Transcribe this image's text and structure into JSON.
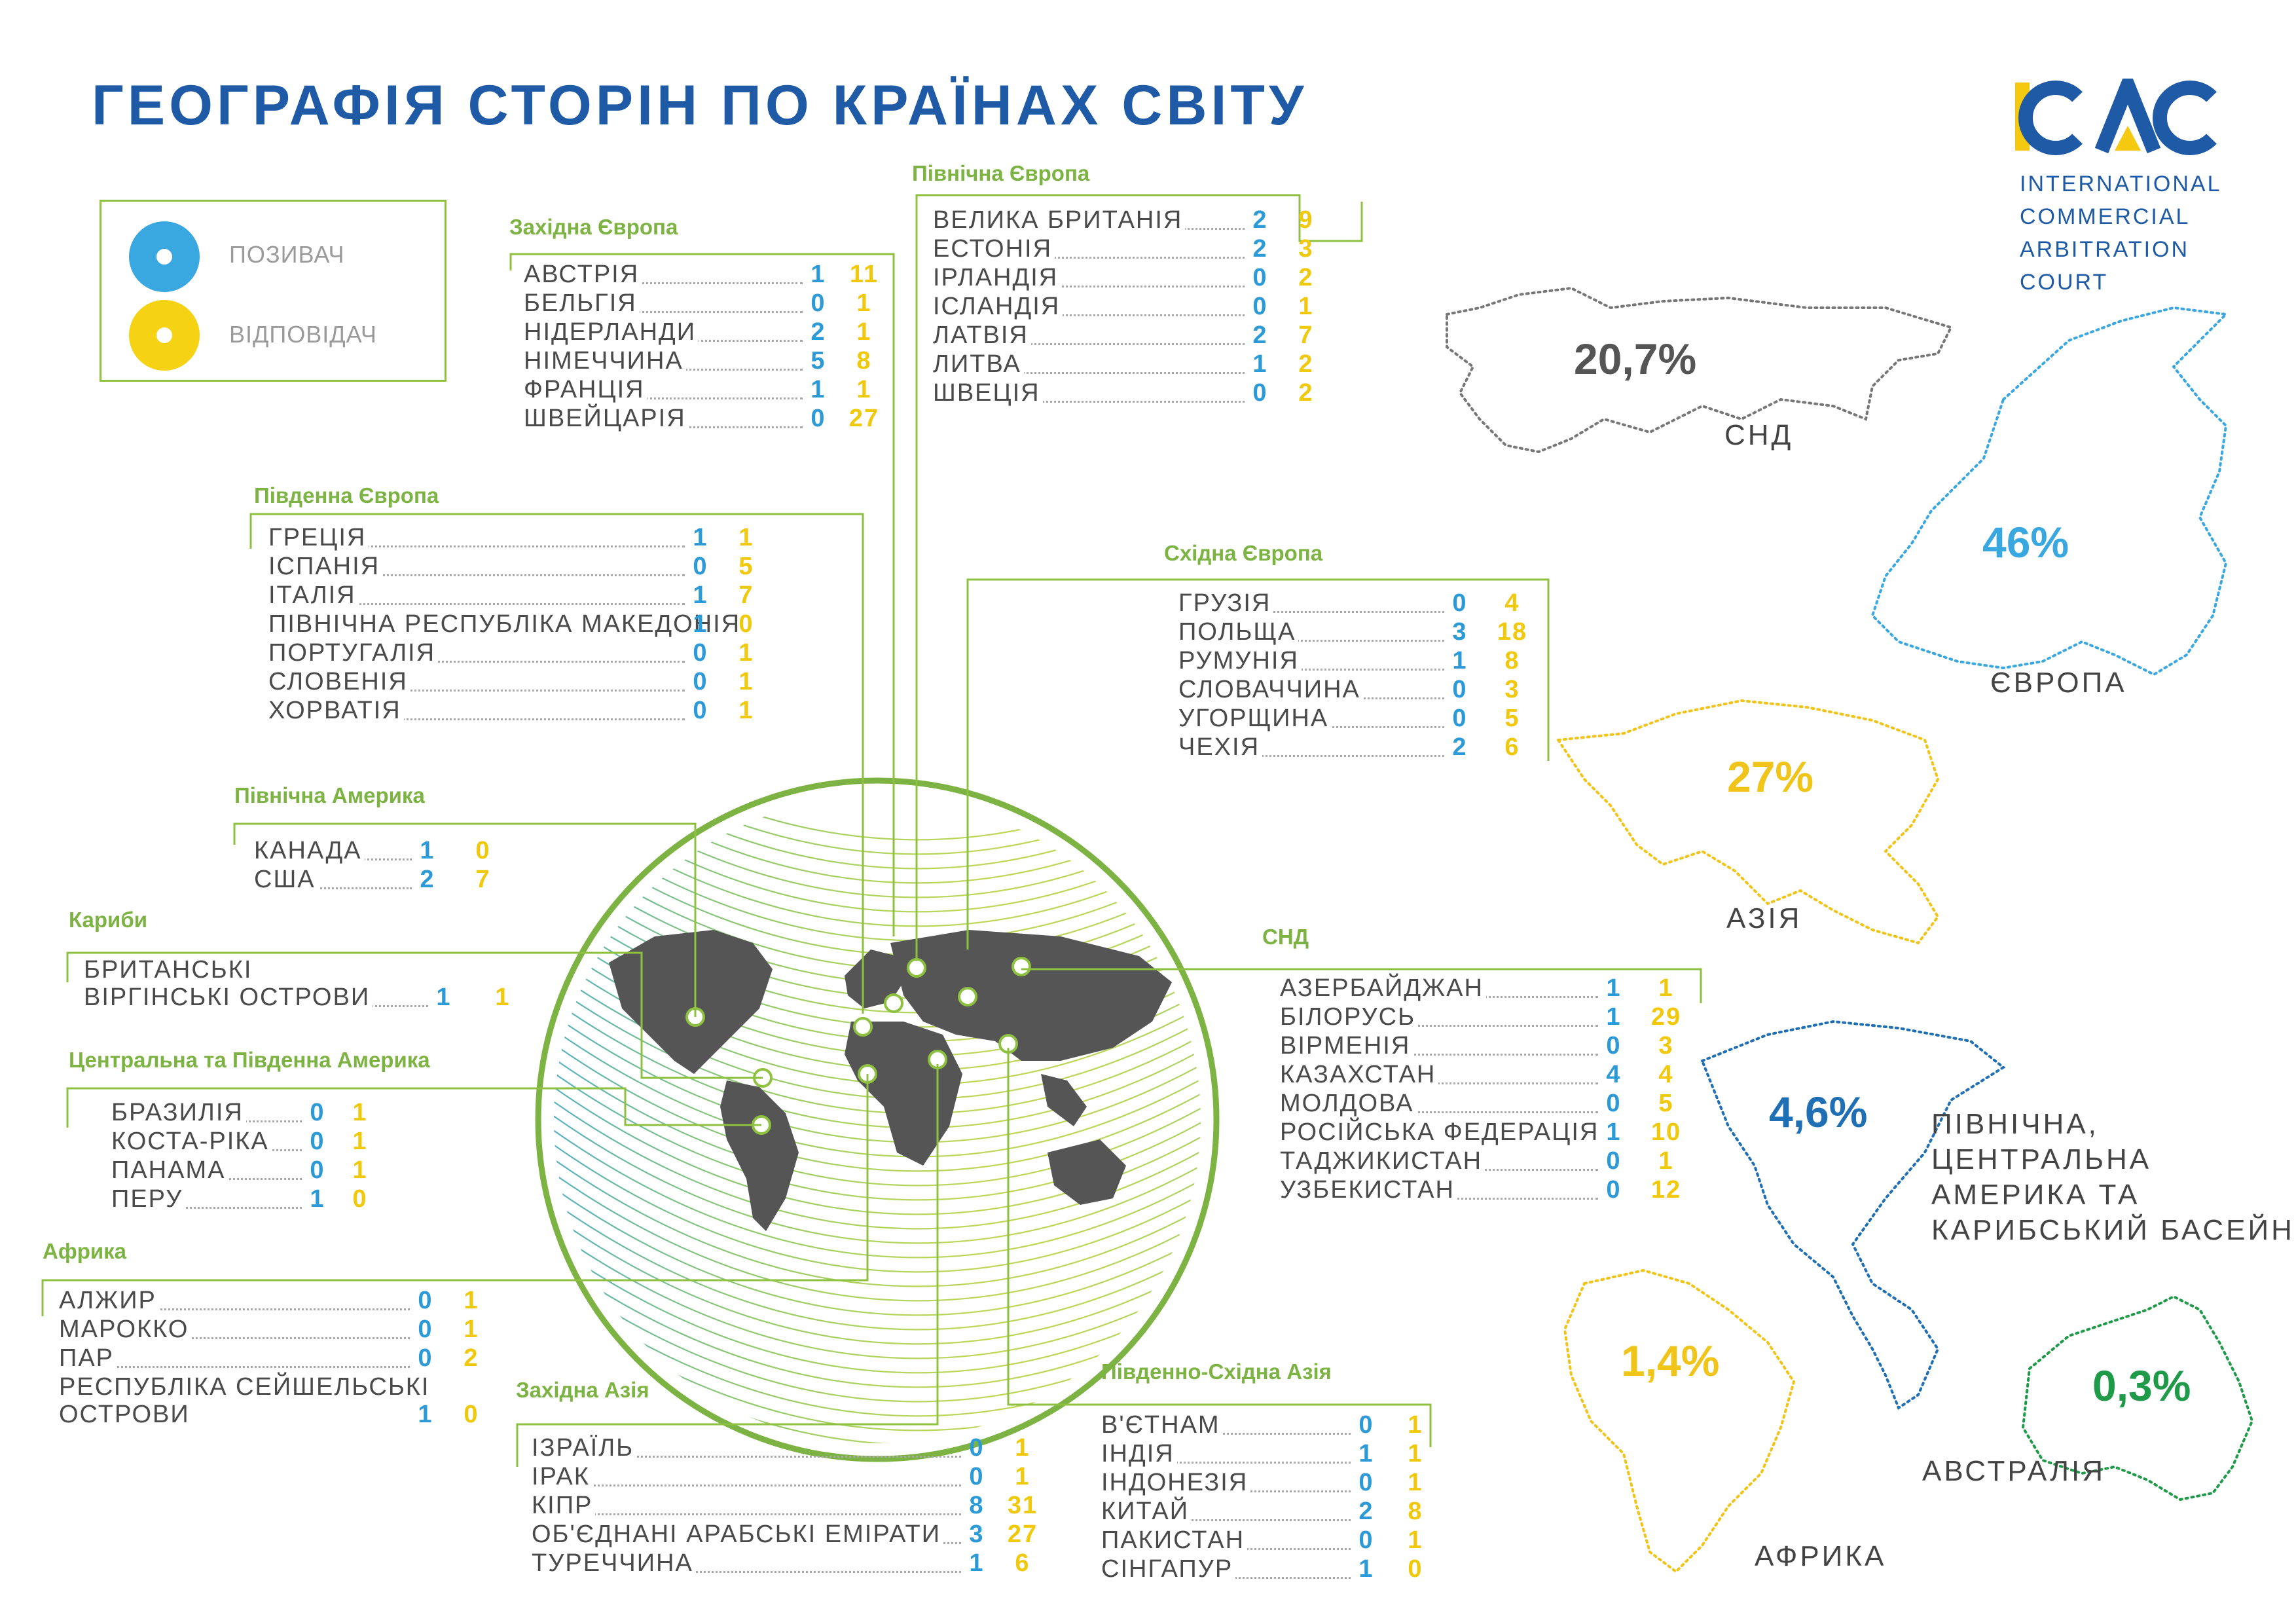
{
  "title": "ГЕОГРАФІЯ СТОРІН ПО КРАЇНАХ СВІТУ",
  "legend": {
    "claimant": "ПОЗИВАЧ",
    "respondent": "ВІДПОВІДАЧ"
  },
  "logo": {
    "mark": "ICAC",
    "line1": "INTERNATIONAL",
    "line2": "COMMERCIAL",
    "line3": "ARBITRATION",
    "line4": "COURT"
  },
  "colors": {
    "claimant": "#3aa8e0",
    "respondent": "#f5d314",
    "accent": "#7cb342",
    "title": "#1f5aa6"
  },
  "regions": {
    "western_europe": {
      "title": "Західна Європа",
      "rows": [
        {
          "name": "АВСТРІЯ",
          "c": "1",
          "r": "11"
        },
        {
          "name": "БЕЛЬГІЯ",
          "c": "0",
          "r": "1"
        },
        {
          "name": "НІДЕРЛАНДИ",
          "c": "2",
          "r": "1"
        },
        {
          "name": "НІМЕЧЧИНА",
          "c": "5",
          "r": "8"
        },
        {
          "name": "ФРАНЦІЯ",
          "c": "1",
          "r": "1"
        },
        {
          "name": "ШВЕЙЦАРІЯ",
          "c": "0",
          "r": "27"
        }
      ]
    },
    "northern_europe": {
      "title": "Північна Європа",
      "rows": [
        {
          "name": "ВЕЛИКА БРИТАНІЯ",
          "c": "2",
          "r": "9"
        },
        {
          "name": "ЕСТОНІЯ",
          "c": "2",
          "r": "3"
        },
        {
          "name": "ІРЛАНДІЯ",
          "c": "0",
          "r": "2"
        },
        {
          "name": "ІСЛАНДІЯ",
          "c": "0",
          "r": "1"
        },
        {
          "name": "ЛАТВІЯ",
          "c": "2",
          "r": "7"
        },
        {
          "name": "ЛИТВА",
          "c": "1",
          "r": "2"
        },
        {
          "name": "ШВЕЦІЯ",
          "c": "0",
          "r": "2"
        }
      ]
    },
    "southern_europe": {
      "title": "Південна Європа",
      "rows": [
        {
          "name": "ГРЕЦІЯ",
          "c": "1",
          "r": "1"
        },
        {
          "name": "ІСПАНІЯ",
          "c": "0",
          "r": "5"
        },
        {
          "name": "ІТАЛІЯ",
          "c": "1",
          "r": "7"
        },
        {
          "name": "ПІВНІЧНА РЕСПУБЛІКА МАКЕДОНІЯ",
          "c": "1",
          "r": "0"
        },
        {
          "name": "ПОРТУГАЛІЯ",
          "c": "0",
          "r": "1"
        },
        {
          "name": "СЛОВЕНІЯ",
          "c": "0",
          "r": "1"
        },
        {
          "name": "ХОРВАТІЯ",
          "c": "0",
          "r": "1"
        }
      ]
    },
    "eastern_europe": {
      "title": "Східна Європа",
      "rows": [
        {
          "name": "ГРУЗІЯ",
          "c": "0",
          "r": "4"
        },
        {
          "name": "ПОЛЬЩА",
          "c": "3",
          "r": "18"
        },
        {
          "name": "РУМУНІЯ",
          "c": "1",
          "r": "8"
        },
        {
          "name": "СЛОВАЧЧИНА",
          "c": "0",
          "r": "3"
        },
        {
          "name": "УГОРЩИНА",
          "c": "0",
          "r": "5"
        },
        {
          "name": "ЧЕХІЯ",
          "c": "2",
          "r": "6"
        }
      ]
    },
    "north_america": {
      "title": "Північна Америка",
      "rows": [
        {
          "name": "КАНАДА",
          "c": "1",
          "r": "0"
        },
        {
          "name": "США",
          "c": "2",
          "r": "7"
        }
      ]
    },
    "caribbean": {
      "title": "Кариби",
      "rows": [
        {
          "name": "БРИТАНСЬКІ\nВІРГІНСЬКІ ОСТРОВИ",
          "c": "1",
          "r": "1"
        }
      ]
    },
    "central_south_america": {
      "title": "Центральна та Південна Америка",
      "rows": [
        {
          "name": "БРАЗИЛІЯ",
          "c": "0",
          "r": "1"
        },
        {
          "name": "КОСТА-РІКА",
          "c": "0",
          "r": "1"
        },
        {
          "name": "ПАНАМА",
          "c": "0",
          "r": "1"
        },
        {
          "name": "ПЕРУ",
          "c": "1",
          "r": "0"
        }
      ]
    },
    "africa": {
      "title": "Африка",
      "rows": [
        {
          "name": "АЛЖИР",
          "c": "0",
          "r": "1"
        },
        {
          "name": "МАРОККО",
          "c": "0",
          "r": "1"
        },
        {
          "name": "ПАР",
          "c": "0",
          "r": "2"
        },
        {
          "name": "РЕСПУБЛІКА СЕЙШЕЛЬСЬКІ\nОСТРОВИ",
          "c": "1",
          "r": "0"
        }
      ]
    },
    "cis": {
      "title": "СНД",
      "rows": [
        {
          "name": "АЗЕРБАЙДЖАН",
          "c": "1",
          "r": "1"
        },
        {
          "name": "БІЛОРУСЬ",
          "c": "1",
          "r": "29"
        },
        {
          "name": "ВІРМЕНІЯ",
          "c": "0",
          "r": "3"
        },
        {
          "name": "КАЗАХСТАН",
          "c": "4",
          "r": "4"
        },
        {
          "name": "МОЛДОВА",
          "c": "0",
          "r": "5"
        },
        {
          "name": "РОСІЙСЬКА ФЕДЕРАЦІЯ",
          "c": "1",
          "r": "10"
        },
        {
          "name": "ТАДЖИКИСТАН",
          "c": "0",
          "r": "1"
        },
        {
          "name": "УЗБЕКИСТАН",
          "c": "0",
          "r": "12"
        }
      ]
    },
    "western_asia": {
      "title": "Західна Азія",
      "rows": [
        {
          "name": "ІЗРАЇЛЬ",
          "c": "0",
          "r": "1"
        },
        {
          "name": "ІРАК",
          "c": "0",
          "r": "1"
        },
        {
          "name": "КІПР",
          "c": "8",
          "r": "31"
        },
        {
          "name": "ОБ'ЄДНАНІ АРАБСЬКІ ЕМІРАТИ",
          "c": "3",
          "r": "27"
        },
        {
          "name": "ТУРЕЧЧИНА",
          "c": "1",
          "r": "6"
        }
      ]
    },
    "southeast_asia": {
      "title": "Південно-Східна Азія",
      "rows": [
        {
          "name": "В'ЄТНАМ",
          "c": "0",
          "r": "1"
        },
        {
          "name": "ІНДІЯ",
          "c": "1",
          "r": "1"
        },
        {
          "name": "ІНДОНЕЗІЯ",
          "c": "0",
          "r": "1"
        },
        {
          "name": "КИТАЙ",
          "c": "2",
          "r": "8"
        },
        {
          "name": "ПАКИСТАН",
          "c": "0",
          "r": "1"
        },
        {
          "name": "СІНГАПУР",
          "c": "1",
          "r": "0"
        }
      ]
    }
  },
  "shares": {
    "cis": {
      "pct": "20,7%",
      "label": "СНД",
      "color": "#555555"
    },
    "europe": {
      "pct": "46%",
      "label": "ЄВРОПА",
      "color": "#3aa8e0"
    },
    "asia": {
      "pct": "27%",
      "label": "АЗІЯ",
      "color": "#f0c418"
    },
    "americas": {
      "pct": "4,6%",
      "label1": "ПІВНІЧНА,",
      "label2": "ЦЕНТРАЛЬНА",
      "label3": "АМЕРИКА ТА",
      "label4": "КАРИБСЬКИЙ БАСЕЙН",
      "color": "#1f6fb5"
    },
    "africa": {
      "pct": "1,4%",
      "label": "АФРИКА",
      "color": "#f0c418"
    },
    "australia": {
      "pct": "0,3%",
      "label": "АВСТРАЛІЯ",
      "color": "#1e9a48"
    }
  }
}
